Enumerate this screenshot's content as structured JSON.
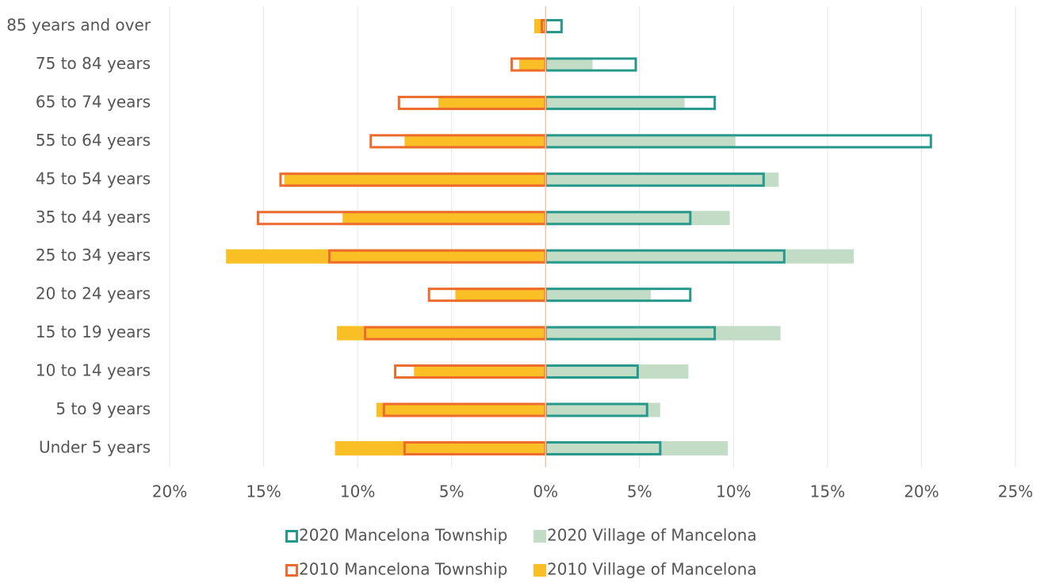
{
  "chart_data": {
    "type": "pyramid",
    "categories": [
      "85 years and over",
      "75 to 84 years",
      "65 to 74 years",
      "55 to 64 years",
      "45 to 54 years",
      "35 to 44 years",
      "25 to 34 years",
      "20 to 24 years",
      "15 to 19 years",
      "10 to 14 years",
      "5 to 9 years",
      "Under 5 years"
    ],
    "series": [
      {
        "name": "2020 Mancelona Township",
        "color": "#27998c",
        "style": "outline",
        "values": [
          0.85,
          4.8,
          9.0,
          20.5,
          11.6,
          7.7,
          12.7,
          7.7,
          9.0,
          4.9,
          5.4,
          6.1
        ]
      },
      {
        "name": "2020 Village of Mancelona",
        "color": "#c3dcc6",
        "style": "fill",
        "values": [
          0,
          2.5,
          7.4,
          10.1,
          12.4,
          9.8,
          16.4,
          5.6,
          12.5,
          7.6,
          6.1,
          9.7
        ]
      },
      {
        "name": "2010 Mancelona Township",
        "color": "#ec6b2d",
        "style": "outline",
        "values": [
          -0.2,
          -1.8,
          -7.8,
          -9.3,
          -14.1,
          -15.3,
          -11.5,
          -6.2,
          -9.6,
          -8.0,
          -8.6,
          -7.5
        ]
      },
      {
        "name": "2010 Village of Mancelona",
        "color": "#fbbf26",
        "style": "fill",
        "values": [
          -0.6,
          -1.4,
          -5.7,
          -7.5,
          -13.9,
          -10.8,
          -17.0,
          -4.8,
          -11.1,
          -7.0,
          -9.0,
          -11.2
        ]
      }
    ],
    "xlim": [
      -20,
      25
    ],
    "xticks": [
      {
        "value": -20,
        "label": "20%"
      },
      {
        "value": -15,
        "label": "15%"
      },
      {
        "value": -10,
        "label": "10%"
      },
      {
        "value": -5,
        "label": "5%"
      },
      {
        "value": 0,
        "label": "0%"
      },
      {
        "value": 5,
        "label": "5%"
      },
      {
        "value": 10,
        "label": "10%"
      },
      {
        "value": 15,
        "label": "15%"
      },
      {
        "value": 20,
        "label": "20%"
      },
      {
        "value": 25,
        "label": "25%"
      }
    ],
    "grid": true,
    "legend": "bottom"
  }
}
